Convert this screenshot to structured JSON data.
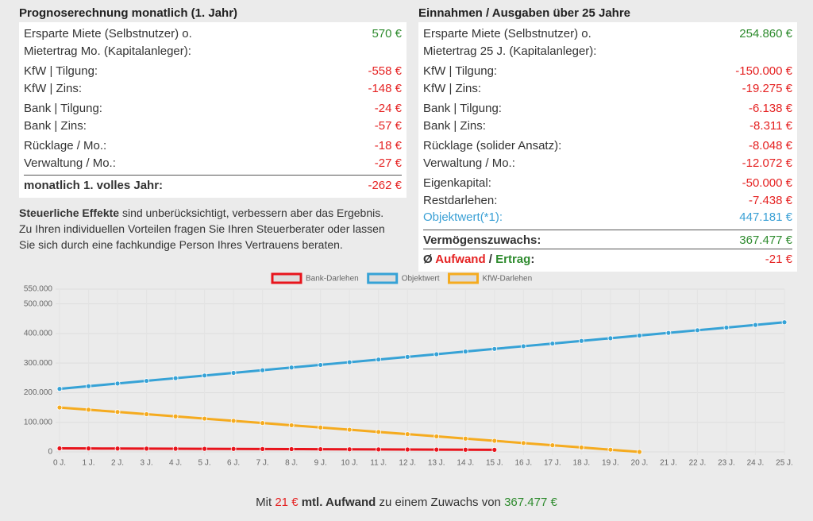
{
  "left": {
    "title": "Prognoserechnung monatlich (1. Jahr)",
    "groups": [
      [
        {
          "label": "Ersparte Miete (Selbstnutzer) o. Mietertrag Mo. (Kapitalanleger):",
          "value": "570 €"
        }
      ],
      [
        {
          "label": "KfW | Tilgung:",
          "value": "-558 €"
        },
        {
          "label": "KfW | Zins:",
          "value": "-148 €"
        }
      ],
      [
        {
          "label": "Bank | Tilgung:",
          "value": "-24 €"
        },
        {
          "label": "Bank | Zins:",
          "value": "-57 €"
        }
      ],
      [
        {
          "label": "Rücklage / Mo.:",
          "value": "-18 €"
        },
        {
          "label": "Verwaltung / Mo.:",
          "value": "-27 €"
        }
      ]
    ],
    "total": {
      "label": "monatlich 1. volles Jahr:",
      "value": "-262 €"
    }
  },
  "note": {
    "bold": "Steuerliche Effekte",
    "text": " sind unberücksichtigt, verbessern aber das Ergebnis. Zu Ihren individuellen Vorteilen fragen Sie Ihren Steuerberater oder lassen Sie sich durch eine fachkundige Person Ihres Vertrauens beraten."
  },
  "right": {
    "title": "Einnahmen / Ausgaben über 25 Jahre",
    "groups": [
      [
        {
          "label": "Ersparte Miete (Selbstnutzer) o. Mietertrag 25 J. (Kapitalanleger):",
          "value": "254.860 €"
        }
      ],
      [
        {
          "label": "KfW | Tilgung:",
          "value": "-150.000 €"
        },
        {
          "label": "KfW | Zins:",
          "value": "-19.275 €"
        }
      ],
      [
        {
          "label": "Bank | Tilgung:",
          "value": "-6.138 €"
        },
        {
          "label": "Bank | Zins:",
          "value": "-8.311 €"
        }
      ],
      [
        {
          "label": "Rücklage (solider Ansatz):",
          "value": "-8.048 €"
        },
        {
          "label": "Verwaltung / Mo.:",
          "value": "-12.072 €"
        }
      ],
      [
        {
          "label": "Eigenkapital:",
          "value": "-50.000 €"
        },
        {
          "label": "Restdarlehen:",
          "value": "-7.438 €"
        },
        {
          "label": "Objektwert(*1):",
          "value": "447.181 €"
        }
      ]
    ],
    "growth": {
      "label": "Vermögenszuwachs:",
      "value": "367.477 €"
    },
    "balance": {
      "prefix": "Ø ",
      "expense": "Aufwand",
      "sep": " / ",
      "income": "Ertrag",
      "colon": ":",
      "value": "-21 €"
    }
  },
  "chart_data": {
    "type": "line",
    "categories": [
      "0 J.",
      "1 J.",
      "2 J.",
      "3 J.",
      "4 J.",
      "5 J.",
      "6 J.",
      "7 J.",
      "8 J.",
      "9 J.",
      "10 J.",
      "11 J.",
      "12 J.",
      "13 J.",
      "14 J.",
      "15 J.",
      "16 J.",
      "17 J.",
      "18 J.",
      "19 J.",
      "20 J.",
      "21 J.",
      "22 J.",
      "23 J.",
      "24 J.",
      "25 J."
    ],
    "series": [
      {
        "name": "Bank-Darlehen",
        "color": "#e8141c",
        "values": [
          12000,
          11670,
          11340,
          11010,
          10680,
          10350,
          10020,
          9690,
          9360,
          9030,
          8700,
          8370,
          8040,
          7710,
          7380,
          7050,
          null,
          null,
          null,
          null,
          null,
          null,
          null,
          null,
          null,
          null
        ]
      },
      {
        "name": "Objektwert",
        "color": "#36a2d6",
        "values": [
          213000,
          222000,
          231000,
          240000,
          249000,
          258000,
          267000,
          276000,
          285000,
          294000,
          303000,
          312000,
          321000,
          330000,
          339000,
          348000,
          357000,
          366000,
          375000,
          384000,
          393000,
          402000,
          411000,
          420000,
          429000,
          438000
        ]
      },
      {
        "name": "KfW-Darlehen",
        "color": "#f5ab1f",
        "values": [
          150000,
          142500,
          135000,
          127500,
          120000,
          112500,
          105000,
          97500,
          90000,
          82500,
          75000,
          67500,
          60000,
          52500,
          45000,
          37500,
          30000,
          22500,
          15000,
          7500,
          0,
          null,
          null,
          null,
          null,
          null
        ]
      }
    ],
    "ylim": [
      0,
      550000
    ],
    "yticks": [
      0,
      {
        "value": 100000,
        "label": "100.000"
      },
      {
        "value": 200000,
        "label": "200.000"
      },
      {
        "value": 300000,
        "label": "300.000"
      },
      {
        "value": 400000,
        "label": "400.000"
      },
      {
        "value": 500000,
        "label": "500.000"
      },
      {
        "value": 550000,
        "label": "550.000"
      }
    ],
    "grid": true,
    "legend": "top"
  },
  "footer": {
    "a": "Mit ",
    "b": "21 €",
    "c": " mtl. Aufwand",
    "d": " zu einem Zuwachs von ",
    "e": "367.477 €"
  }
}
